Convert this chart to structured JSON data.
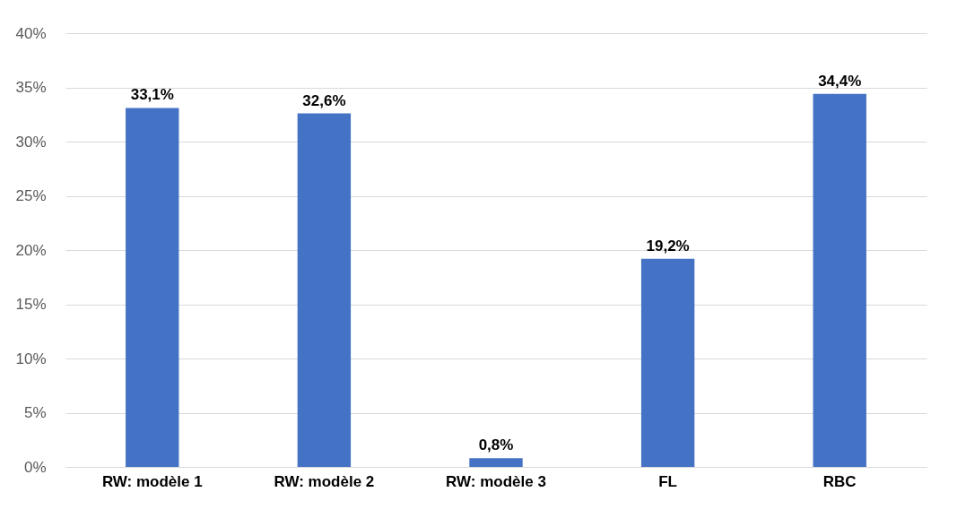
{
  "chart_data": {
    "type": "bar",
    "categories": [
      "RW: modèle 1",
      "RW: modèle 2",
      "RW: modèle 3",
      "FL",
      "RBC"
    ],
    "values": [
      33.1,
      32.6,
      0.8,
      19.2,
      34.4
    ],
    "value_labels": [
      "33,1%",
      "32,6%",
      "0,8%",
      "19,2%",
      "34,4%"
    ],
    "color": "#4472c4",
    "ylim": [
      0,
      40
    ],
    "yticks": [
      {
        "value": 0,
        "label": "0%"
      },
      {
        "value": 5,
        "label": "5%"
      },
      {
        "value": 10,
        "label": "10%"
      },
      {
        "value": 15,
        "label": "15%"
      },
      {
        "value": 20,
        "label": "20%"
      },
      {
        "value": 25,
        "label": "25%"
      },
      {
        "value": 30,
        "label": "30%"
      },
      {
        "value": 35,
        "label": "35%"
      },
      {
        "value": 40,
        "label": "40%"
      }
    ],
    "grid": "y"
  }
}
